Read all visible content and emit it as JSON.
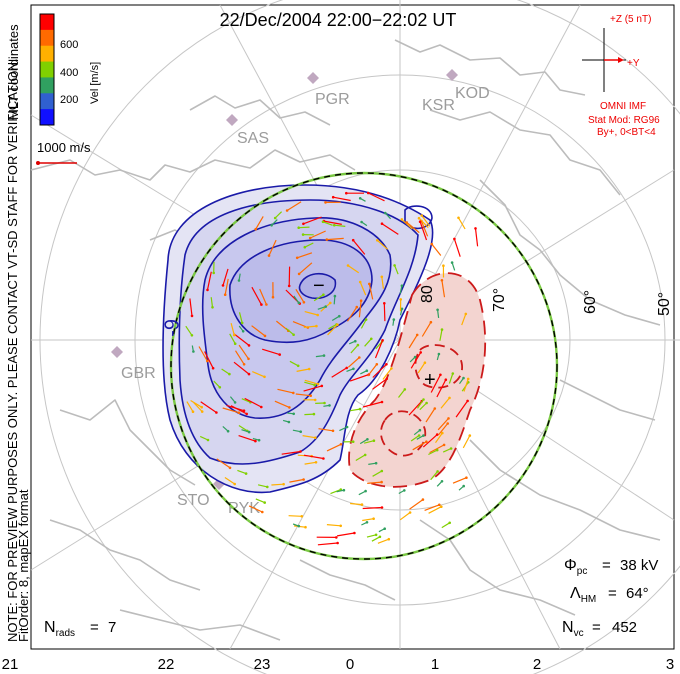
{
  "title": "22/Dec/2004 22:00−22:02 UT",
  "side_note_line1": "NOTE: FOR PREVIEW PURPOSES ONLY. PLEASE CONTACT VT-SD STAFF FOR VERIFICATION.",
  "side_note_line2": "FitOrder: 8, mapEX format",
  "coord_label": "MLT coordinates",
  "colorbar": {
    "label": "Vel [m/s]",
    "ticks": [
      "600",
      "400",
      "200"
    ],
    "colors": [
      "#ff0000",
      "#ff6a00",
      "#ffb000",
      "#80d000",
      "#30a060",
      "#3060d0",
      "#1010ff"
    ]
  },
  "scale_vector_label": "1000 m/s",
  "imf": {
    "z_label": "+Z (5 nT)",
    "y_label": "+Y",
    "source": "OMNI IMF",
    "stat_mod": "Stat Mod: RG96",
    "condition": "By+, 0<BT<4"
  },
  "stations": [
    "PGR",
    "KSR",
    "KOD",
    "SAS",
    "GBR",
    "STO",
    "PYK"
  ],
  "lat_labels": [
    "80",
    "70°",
    "60°",
    "50°"
  ],
  "mlt_ticks": [
    "21",
    "22",
    "23",
    "0",
    "1",
    "2",
    "3"
  ],
  "contour_labels": {
    "neg": "-9",
    "pos_marker": "+",
    "neg_marker": "−"
  },
  "stats": {
    "phi_pc": "38 kV",
    "lambda_hm": "64°",
    "n_vc": "452",
    "n_rads": "7"
  },
  "colors": {
    "neg_fill": "#c8c8ee",
    "neg_line": "#1a1aa8",
    "pos_fill": "#f3d4d0",
    "pos_line": "#cc1a1a",
    "boundary_green": "#7ac943",
    "grid": "#c6c6c6",
    "coast": "#bcbcbc",
    "imf_red": "#ee0000"
  }
}
